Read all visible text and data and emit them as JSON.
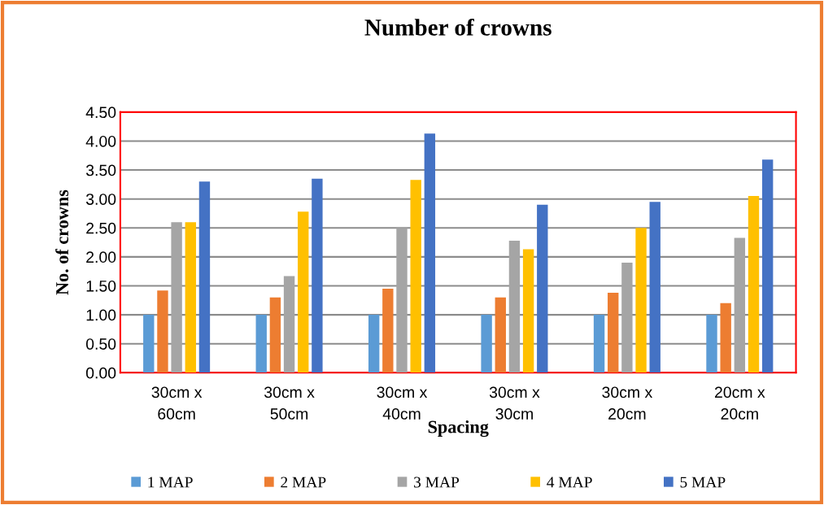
{
  "chart_data": {
    "type": "bar",
    "title": "Number of crowns",
    "xlabel": "Spacing",
    "ylabel": "No. of crowns",
    "categories": [
      "30cm x\n60cm",
      "30cm x\n50cm",
      "30cm x\n40cm",
      "30cm x\n30cm",
      "30cm x\n20cm",
      "20cm x\n20cm"
    ],
    "series": [
      {
        "name": "1 MAP",
        "color": "#5b9bd5",
        "values": [
          1.0,
          1.0,
          1.0,
          1.0,
          1.0,
          1.0
        ]
      },
      {
        "name": "2 MAP",
        "color": "#ed7d31",
        "values": [
          1.42,
          1.3,
          1.45,
          1.3,
          1.38,
          1.2
        ]
      },
      {
        "name": "3 MAP",
        "color": "#a5a5a5",
        "values": [
          2.6,
          1.67,
          2.5,
          2.28,
          1.9,
          2.33
        ]
      },
      {
        "name": "4 MAP",
        "color": "#ffc000",
        "values": [
          2.6,
          2.78,
          3.33,
          2.13,
          2.5,
          3.05
        ]
      },
      {
        "name": "5 MAP",
        "color": "#4472c4",
        "values": [
          3.3,
          3.35,
          4.13,
          2.9,
          2.95,
          3.68
        ]
      }
    ],
    "ylim": [
      0,
      4.5
    ],
    "yticks": [
      {
        "value": 0,
        "label": "0.00"
      },
      {
        "value": 0.5,
        "label": "0.50"
      },
      {
        "value": 1,
        "label": "1.00"
      },
      {
        "value": 1.5,
        "label": "1.50"
      },
      {
        "value": 2,
        "label": "2.00"
      },
      {
        "value": 2.5,
        "label": "2.50"
      },
      {
        "value": 3,
        "label": "3.00"
      },
      {
        "value": 3.5,
        "label": "3.50"
      },
      {
        "value": 4,
        "label": "4.00"
      },
      {
        "value": 4.5,
        "label": "4.50"
      }
    ],
    "grid": "y",
    "legend": "bottom"
  }
}
